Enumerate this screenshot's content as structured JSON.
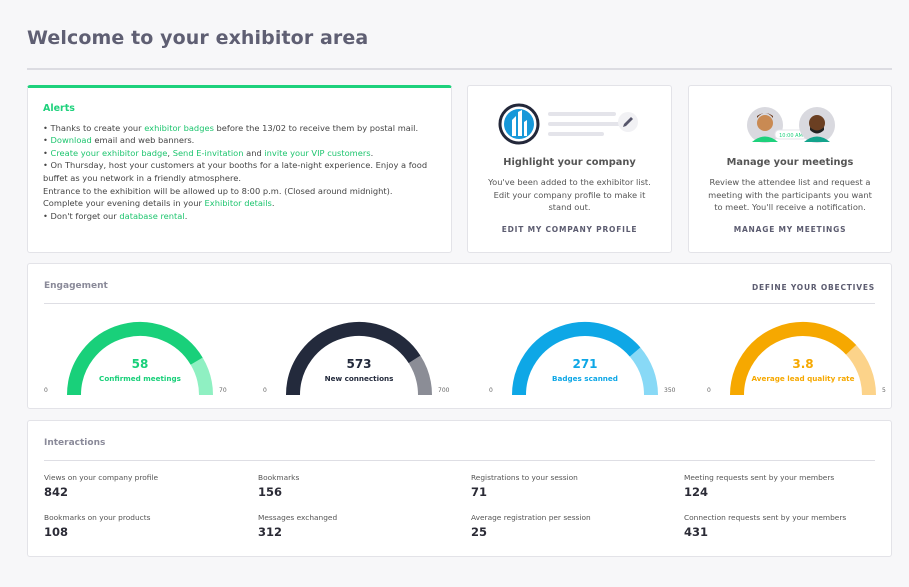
{
  "page_title": "Welcome to your exhibitor area",
  "alerts": {
    "title": "Alerts",
    "l1_pre": "• Thanks to create your ",
    "l1_link": "exhibitor badges",
    "l1_post": " before the 13/02 to receive them by postal mail.",
    "l2_pre": "• ",
    "l2_link": "Download",
    "l2_post": " email and web banners.",
    "l3_pre": "• ",
    "l3_link1": "Create your exhibitor badge",
    "l3_sep1": ", ",
    "l3_link2": "Send E-invitation",
    "l3_sep2": " and ",
    "l3_link3": "invite your VIP customers",
    "l3_post": ".",
    "l4": "• On Thursday, host your customers at your booths for a late-night experience. Enjoy a food",
    "l5": "buffet as you network in a friendly atmosphere.",
    "l6": "Entrance to the exhibition will be allowed up to 8:00 p.m. (Closed around midnight).",
    "l7_pre": "Complete your evening details in your ",
    "l7_link": "Exhibitor details",
    "l7_post": ".",
    "l8_pre": "• Don't forget our ",
    "l8_link": "database rental",
    "l8_post": "."
  },
  "highlight": {
    "title": "Highlight your company",
    "line1": "You've been added to the exhibitor list.",
    "line2": "Edit your company profile to make it",
    "line3": "stand out.",
    "link": "EDIT MY COMPANY PROFILE",
    "icons": [
      "building-logo-icon",
      "pencil-icon"
    ]
  },
  "meetings": {
    "title": "Manage your meetings",
    "line1": "Review the attendee list and request a",
    "line2": "meeting with the participants you want",
    "line3": "to meet. You'll receive a notification.",
    "link": "MANAGE MY MEETINGS",
    "time_badge": "10:00 AM",
    "icons": [
      "person-avatar-icon",
      "person-avatar-icon"
    ]
  },
  "engagement": {
    "title": "Engagement",
    "define_link": "DEFINE YOUR OBECTIVES",
    "gauges": [
      {
        "value": "58",
        "label": "Confirmed meetings",
        "min": "0",
        "max": "70",
        "ratio": 0.8286,
        "color": "#19d07a",
        "rest": "#8ff0c2"
      },
      {
        "value": "573",
        "label": "New connections",
        "min": "0",
        "max": "700",
        "ratio": 0.8186,
        "color": "#232a3c",
        "rest": "#8b8d96"
      },
      {
        "value": "271",
        "label": "Badges scanned",
        "min": "0",
        "max": "350",
        "ratio": 0.7743,
        "color": "#0ea7e6",
        "rest": "#88d9f6"
      },
      {
        "value": "3.8",
        "label": "Average lead quality rate",
        "min": "0",
        "max": "5",
        "ratio": 0.76,
        "color": "#f6a800",
        "rest": "#fcd38a"
      }
    ]
  },
  "interactions": {
    "title": "Interactions",
    "stats": [
      {
        "label": "Views on your company profile",
        "value": "842"
      },
      {
        "label": "Bookmarks",
        "value": "156"
      },
      {
        "label": "Registrations to your session",
        "value": "71"
      },
      {
        "label": "Meeting requests sent by your members",
        "value": "124"
      },
      {
        "label": "Bookmarks on your products",
        "value": "108"
      },
      {
        "label": "Messages exchanged",
        "value": "312"
      },
      {
        "label": "Average registration per session",
        "value": "25"
      },
      {
        "label": "Connection requests sent by your members",
        "value": "431"
      }
    ]
  }
}
